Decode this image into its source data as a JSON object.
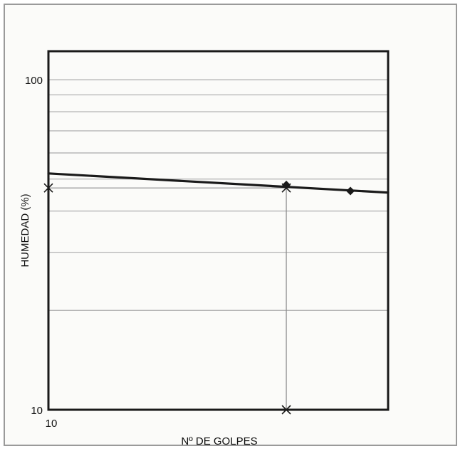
{
  "chart_data": {
    "type": "line",
    "title": "",
    "xlabel": "Nº DE GOLPES",
    "ylabel": "HUMEDAD (%)",
    "x_scale": "log",
    "y_scale": "log",
    "xlim": [
      10,
      37
    ],
    "ylim": [
      10,
      122
    ],
    "x_ticks": [
      {
        "value": 10,
        "label": "10"
      }
    ],
    "y_ticks": [
      {
        "value": 10,
        "label": "10"
      },
      {
        "value": 100,
        "label": "100"
      }
    ],
    "y_gridlines": [
      20,
      30,
      40,
      50,
      60,
      70,
      80,
      90,
      100
    ],
    "grid": true,
    "series": [
      {
        "name": "",
        "marker": "diamond",
        "points": [
          {
            "x": 25,
            "y": 48
          },
          {
            "x": 32,
            "y": 46
          }
        ]
      }
    ],
    "trend_line": {
      "x": [
        10,
        37
      ],
      "y": [
        52,
        45.5
      ]
    },
    "reference": {
      "x": 25,
      "y": 47,
      "markers": [
        {
          "x": 10,
          "y": 47
        },
        {
          "x": 25,
          "y": 47
        },
        {
          "x": 25,
          "y": 10
        }
      ]
    },
    "colors": {
      "axes": "#1a1a1a",
      "grid": "#b8b8b8",
      "trend": "#1a1a1a",
      "reference": "#8a8a8a",
      "marker": "#1a1a1a"
    }
  }
}
